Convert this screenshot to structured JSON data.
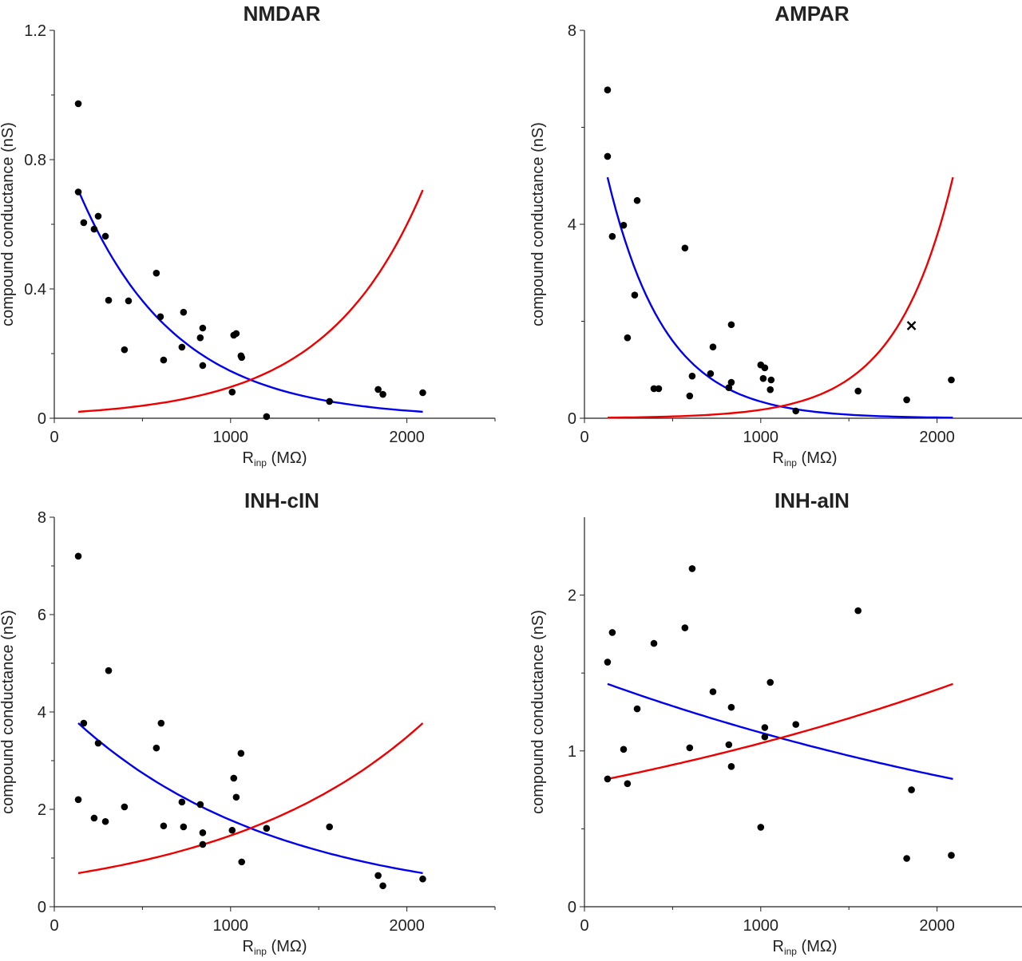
{
  "chart_data": [
    {
      "type": "scatter",
      "title": "NMDAR",
      "xlabel": "R",
      "xlabel_sub": "inp",
      "xlabel_unit": "(MΩ)",
      "ylabel": "compound conductance (nS)",
      "xlim": [
        0,
        2500
      ],
      "ylim": [
        0,
        1.2
      ],
      "xticks": [
        0,
        1000,
        2000
      ],
      "xminor": [
        500,
        1500,
        2500
      ],
      "yticks": [
        0,
        0.4,
        0.8,
        1.2
      ],
      "yticklabels": [
        "0",
        "0.4",
        "0.8",
        "1.2"
      ],
      "yminor": [
        0.2,
        0.6,
        1.0
      ],
      "points": [
        [
          136,
          0.973
        ],
        [
          136,
          0.7
        ],
        [
          167,
          0.605
        ],
        [
          226,
          0.585
        ],
        [
          249,
          0.625
        ],
        [
          290,
          0.563
        ],
        [
          308,
          0.365
        ],
        [
          421,
          0.363
        ],
        [
          398,
          0.212
        ],
        [
          579,
          0.449
        ],
        [
          602,
          0.314
        ],
        [
          620,
          0.18
        ],
        [
          724,
          0.22
        ],
        [
          733,
          0.328
        ],
        [
          828,
          0.249
        ],
        [
          842,
          0.279
        ],
        [
          842,
          0.163
        ],
        [
          1009,
          0.081
        ],
        [
          1018,
          0.257
        ],
        [
          1032,
          0.262
        ],
        [
          1059,
          0.193
        ],
        [
          1063,
          0.188
        ],
        [
          1204,
          0.005
        ],
        [
          1561,
          0.052
        ],
        [
          1837,
          0.089
        ],
        [
          1864,
          0.074
        ],
        [
          2090,
          0.079
        ]
      ],
      "crosses": [],
      "fits": [
        {
          "color": "#0000ee",
          "form": "exponential",
          "x": [
            136,
            2090
          ],
          "y": [
            0.706,
            0.02
          ]
        },
        {
          "color": "#ee0000",
          "form": "exponential",
          "x": [
            136,
            2090
          ],
          "y": [
            0.02,
            0.706
          ]
        }
      ]
    },
    {
      "type": "scatter",
      "title": "AMPAR",
      "xlabel": "R",
      "xlabel_sub": "inp",
      "xlabel_unit": "(MΩ)",
      "ylabel": "compound conductance (nS)",
      "xlim": [
        0,
        2500
      ],
      "ylim": [
        0,
        8
      ],
      "xticks": [
        0,
        1000,
        2000
      ],
      "xminor": [
        500,
        1500,
        2500
      ],
      "yticks": [
        0,
        4,
        8
      ],
      "yticklabels": [
        "0",
        "4",
        "8"
      ],
      "yminor": [
        2,
        6
      ],
      "points": [
        [
          131,
          6.77
        ],
        [
          131,
          5.4
        ],
        [
          158,
          3.75
        ],
        [
          222,
          3.98
        ],
        [
          299,
          4.49
        ],
        [
          244,
          1.66
        ],
        [
          285,
          2.54
        ],
        [
          394,
          0.61
        ],
        [
          421,
          0.61
        ],
        [
          570,
          3.51
        ],
        [
          611,
          0.87
        ],
        [
          597,
          0.46
        ],
        [
          715,
          0.92
        ],
        [
          729,
          1.47
        ],
        [
          819,
          0.63
        ],
        [
          833,
          0.74
        ],
        [
          833,
          1.93
        ],
        [
          1000,
          1.1
        ],
        [
          1023,
          1.04
        ],
        [
          1014,
          0.82
        ],
        [
          1054,
          0.59
        ],
        [
          1059,
          0.79
        ],
        [
          1199,
          0.15
        ],
        [
          1552,
          0.56
        ],
        [
          1828,
          0.38
        ],
        [
          2081,
          0.79
        ]
      ],
      "crosses": [
        [
          1855,
          1.91
        ]
      ],
      "fits": [
        {
          "color": "#0000ee",
          "form": "exponential",
          "x": [
            131,
            2090
          ],
          "y": [
            4.97,
            0.012
          ]
        },
        {
          "color": "#ee0000",
          "form": "exponential",
          "x": [
            131,
            2090
          ],
          "y": [
            0.012,
            4.97
          ]
        }
      ]
    },
    {
      "type": "scatter",
      "title": "INH-cIN",
      "xlabel": "R",
      "xlabel_sub": "inp",
      "xlabel_unit": "(MΩ)",
      "ylabel": "compound conductance (nS)",
      "xlim": [
        0,
        2500
      ],
      "ylim": [
        0,
        8
      ],
      "xticks": [
        0,
        1000,
        2000
      ],
      "xminor": [
        500,
        1500,
        2500
      ],
      "yticks": [
        0,
        2,
        4,
        6,
        8
      ],
      "yticklabels": [
        "0",
        "2",
        "4",
        "6",
        "8"
      ],
      "yminor": [
        1,
        3,
        5,
        7
      ],
      "points": [
        [
          136,
          7.2
        ],
        [
          136,
          2.2
        ],
        [
          167,
          3.77
        ],
        [
          226,
          1.82
        ],
        [
          249,
          3.36
        ],
        [
          290,
          1.75
        ],
        [
          308,
          4.85
        ],
        [
          398,
          2.05
        ],
        [
          579,
          3.26
        ],
        [
          606,
          3.77
        ],
        [
          620,
          1.66
        ],
        [
          724,
          2.15
        ],
        [
          733,
          1.64
        ],
        [
          828,
          2.1
        ],
        [
          842,
          1.52
        ],
        [
          842,
          1.28
        ],
        [
          1009,
          1.57
        ],
        [
          1018,
          2.64
        ],
        [
          1032,
          2.25
        ],
        [
          1059,
          3.15
        ],
        [
          1063,
          0.92
        ],
        [
          1204,
          1.61
        ],
        [
          1561,
          1.64
        ],
        [
          1837,
          0.64
        ],
        [
          1864,
          0.43
        ],
        [
          2090,
          0.57
        ]
      ],
      "crosses": [],
      "fits": [
        {
          "color": "#0000ee",
          "form": "exponential",
          "x": [
            136,
            2090
          ],
          "y": [
            3.77,
            0.69
          ]
        },
        {
          "color": "#ee0000",
          "form": "exponential",
          "x": [
            136,
            2090
          ],
          "y": [
            0.69,
            3.77
          ]
        }
      ]
    },
    {
      "type": "scatter",
      "title": "INH-aIN",
      "xlabel": "R",
      "xlabel_sub": "inp",
      "xlabel_unit": "(MΩ)",
      "ylabel": "compound conductance (nS)",
      "xlim": [
        0,
        2500
      ],
      "ylim": [
        0,
        2.5
      ],
      "xticks": [
        0,
        1000,
        2000
      ],
      "xminor": [
        500,
        1500,
        2500
      ],
      "yticks": [
        0,
        1,
        2
      ],
      "yticklabels": [
        "0",
        "1",
        "2"
      ],
      "yminor": [
        0.5,
        1.5
      ],
      "points": [
        [
          131,
          1.57
        ],
        [
          158,
          1.76
        ],
        [
          131,
          0.82
        ],
        [
          222,
          1.01
        ],
        [
          244,
          0.79
        ],
        [
          299,
          1.27
        ],
        [
          394,
          1.69
        ],
        [
          570,
          1.79
        ],
        [
          597,
          1.02
        ],
        [
          611,
          2.17
        ],
        [
          729,
          1.38
        ],
        [
          819,
          1.04
        ],
        [
          833,
          1.28
        ],
        [
          833,
          0.9
        ],
        [
          1000,
          0.51
        ],
        [
          1023,
          1.09
        ],
        [
          1023,
          1.15
        ],
        [
          1054,
          1.44
        ],
        [
          1199,
          1.17
        ],
        [
          1552,
          1.9
        ],
        [
          1828,
          0.31
        ],
        [
          1855,
          0.75
        ],
        [
          2081,
          0.33
        ]
      ],
      "crosses": [],
      "fits": [
        {
          "color": "#0000ee",
          "form": "exponential",
          "x": [
            131,
            2090
          ],
          "y": [
            1.43,
            0.82
          ]
        },
        {
          "color": "#ee0000",
          "form": "exponential",
          "x": [
            131,
            2090
          ],
          "y": [
            0.82,
            1.43
          ]
        }
      ]
    }
  ]
}
